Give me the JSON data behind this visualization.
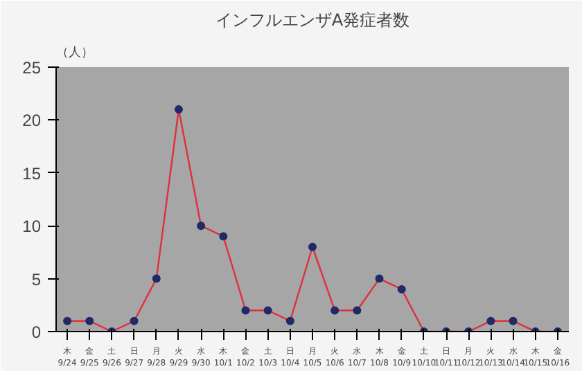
{
  "chart_data": {
    "type": "line",
    "title": "インフルエンザA発症者数",
    "ylabel": "（人）",
    "categories": [
      "木\n9/24",
      "金\n9/25",
      "土\n9/26",
      "日\n9/27",
      "月\n9/28",
      "火\n9/29",
      "水\n9/30",
      "木\n10/1",
      "金\n10/2",
      "土\n10/3",
      "日\n10/4",
      "月\n10/5",
      "火\n10/6",
      "水\n10/7",
      "木\n10/8",
      "金\n10/9",
      "土\n10/10",
      "日\n10/11",
      "月\n10/12",
      "火\n10/13",
      "水\n10/14",
      "木\n10/15",
      "金\n10/16"
    ],
    "series": [
      {
        "color": "#e0303a",
        "values": [
          1,
          1,
          0,
          1,
          5,
          21,
          10,
          9,
          2,
          2,
          1,
          8,
          2,
          2,
          5,
          4,
          0,
          0,
          0,
          1,
          1,
          0,
          0
        ]
      }
    ],
    "ylim": [
      0,
      25
    ],
    "yticks": [
      0,
      5,
      10,
      15,
      20,
      25
    ],
    "grid": false,
    "marker": "circle",
    "line_style": "solid"
  }
}
